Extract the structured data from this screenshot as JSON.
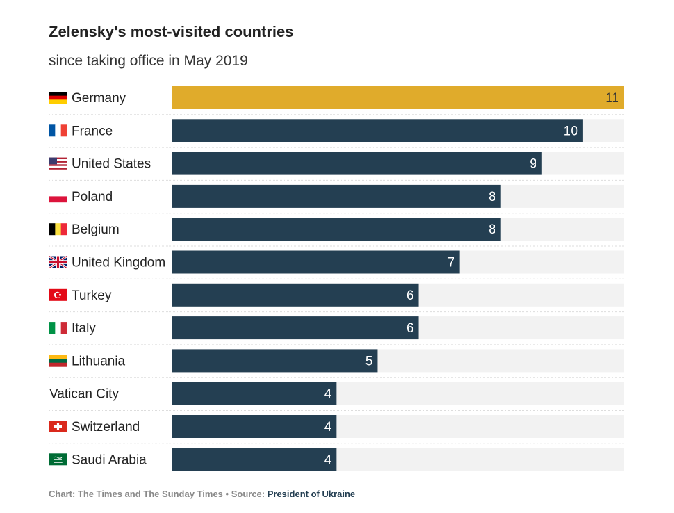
{
  "chart_data": {
    "type": "bar",
    "orientation": "horizontal",
    "title": "Zelensky's most-visited countries",
    "subtitle": "since taking office in May 2019",
    "categories": [
      "Germany",
      "France",
      "United States",
      "Poland",
      "Belgium",
      "United Kingdom",
      "Turkey",
      "Italy",
      "Lithuania",
      "Vatican City",
      "Switzerland",
      "Saudi Arabia"
    ],
    "values": [
      11,
      10,
      9,
      8,
      8,
      7,
      6,
      6,
      5,
      4,
      4,
      4
    ],
    "flags": [
      "germany-flag-icon",
      "france-flag-icon",
      "usa-flag-icon",
      "poland-flag-icon",
      "belgium-flag-icon",
      "uk-flag-icon",
      "turkey-flag-icon",
      "italy-flag-icon",
      "lithuania-flag-icon",
      "",
      "switzerland-flag-icon",
      "saudi-arabia-flag-icon"
    ],
    "xlim": [
      0,
      11
    ],
    "highlight_index": 0,
    "colors": {
      "bar": "#243f52",
      "highlight": "#e0ab2b",
      "track": "#f2f2f2",
      "label": "#ffffff",
      "highlight_label": "#333333",
      "row_divider": "#dddddd"
    }
  },
  "footer": {
    "chart_credit": "Chart: The Times and The Sunday Times",
    "separator": " • ",
    "source_label": "Source: ",
    "source_name": "President of Ukraine"
  }
}
